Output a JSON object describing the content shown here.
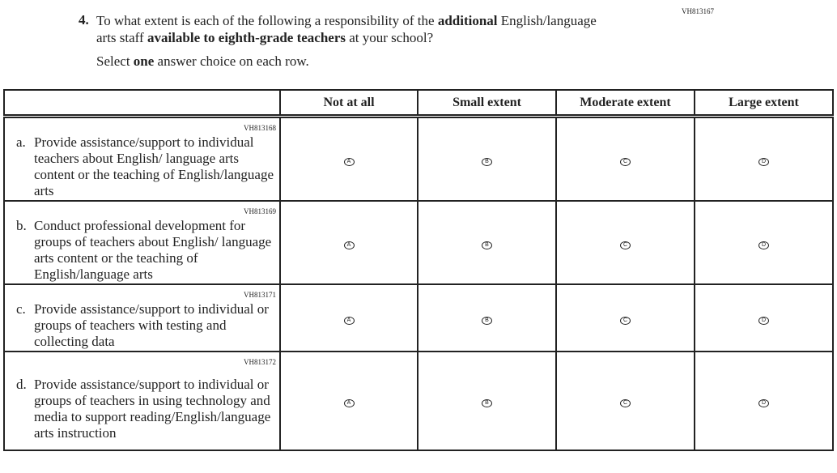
{
  "question": {
    "code": "VH813167",
    "number": "4.",
    "text_parts": [
      "To what extent is each of the following a responsibility of the ",
      "additional",
      " English/language arts staff ",
      "available to eighth-grade teachers",
      " at your school?"
    ],
    "instruction_parts": [
      "Select ",
      "one",
      " answer choice on each row."
    ]
  },
  "columns": [
    "Not at all",
    "Small extent",
    "Moderate extent",
    "Large extent"
  ],
  "bubble_letters": [
    "A",
    "B",
    "C",
    "D"
  ],
  "rows": [
    {
      "code": "VH813168",
      "letter": "a.",
      "text": "Provide assistance/support to individual teachers about English/ language arts content or the teaching of English/language arts"
    },
    {
      "code": "VH813169",
      "letter": "b.",
      "text": "Conduct professional development for groups of teachers about English/ language arts content or the teaching of English/language arts"
    },
    {
      "code": "VH813171",
      "letter": "c.",
      "text": "Provide assistance/support to individual or groups of teachers with testing and collecting data"
    },
    {
      "code": "VH813172",
      "letter": "d.",
      "text": "Provide assistance/support to individual or groups of teachers in using technology and media to support reading/English/language arts instruction"
    }
  ]
}
